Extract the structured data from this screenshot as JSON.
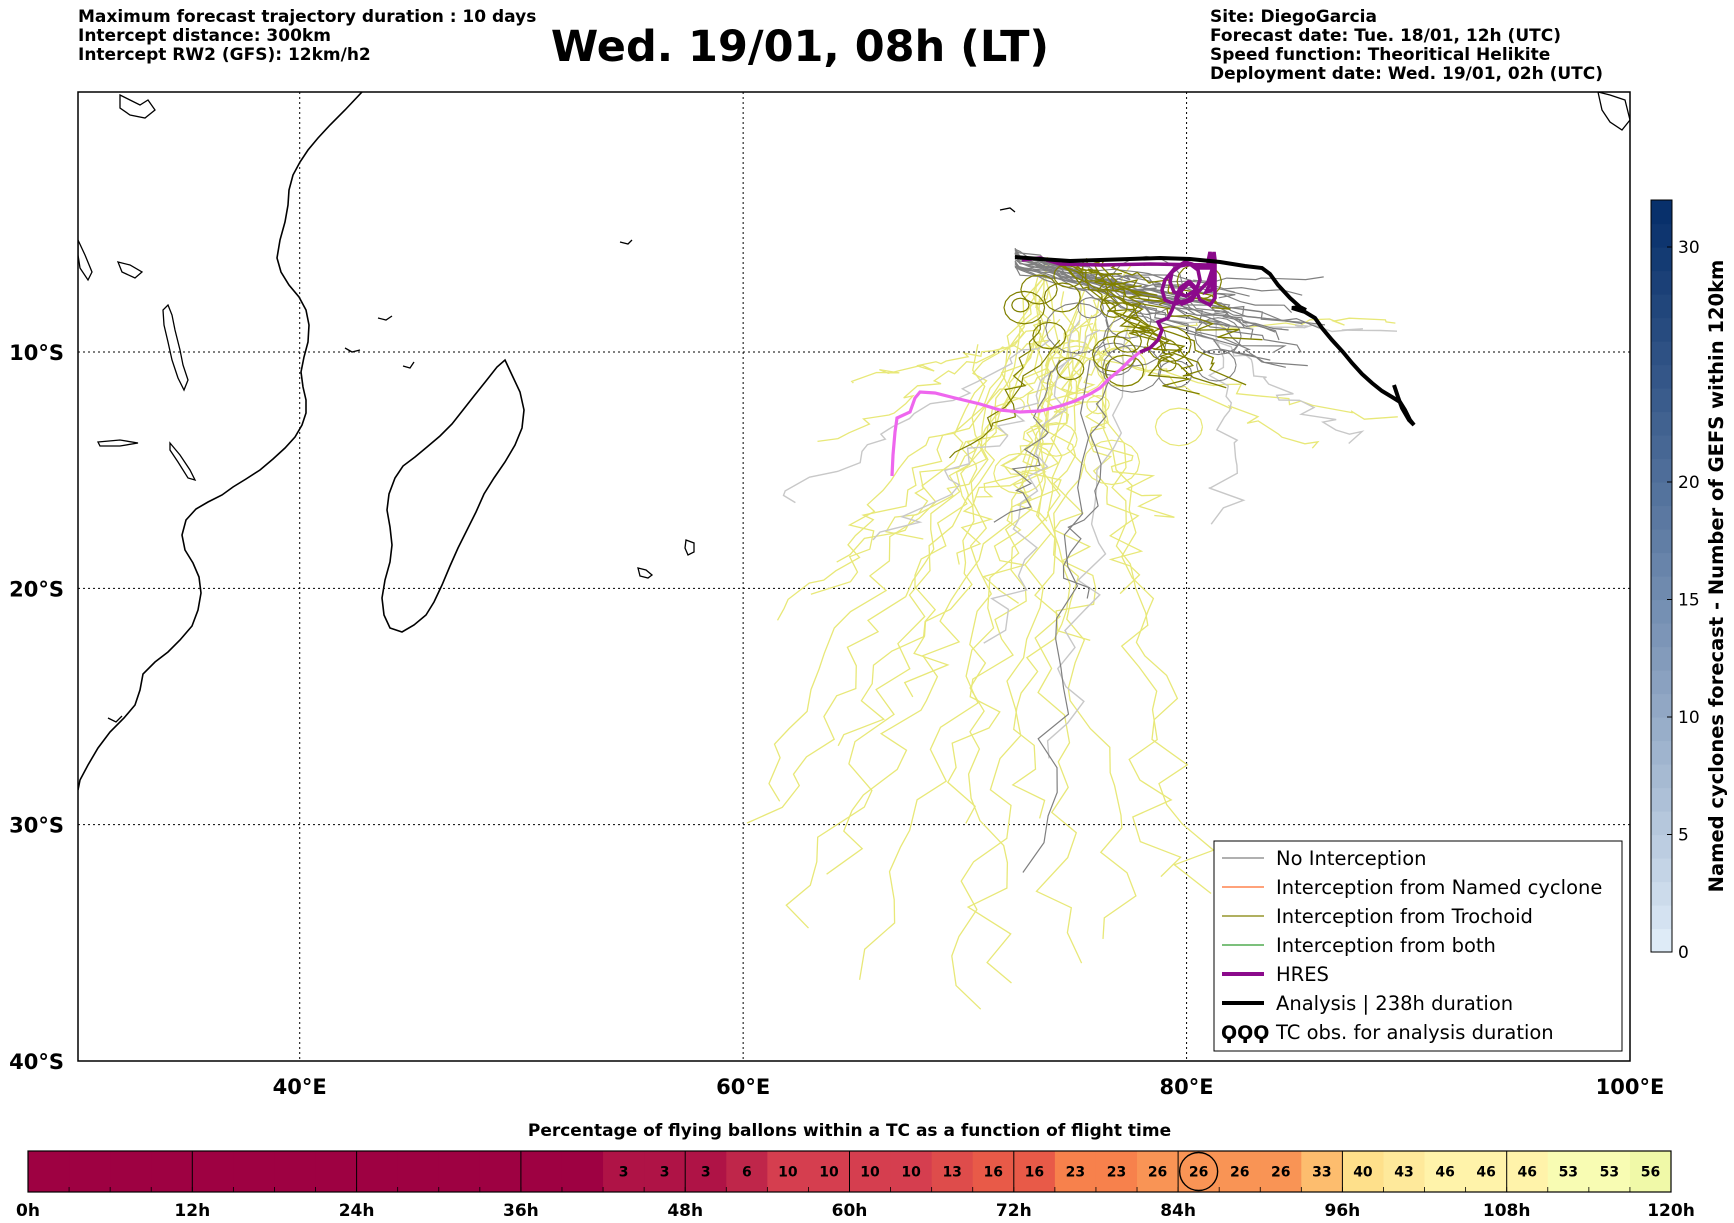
{
  "header_left": {
    "line1": "Maximum forecast trajectory duration : 10 days",
    "line2": "Intercept distance: 300km",
    "line3": "Intercept RW2 (GFS):  12km/h2"
  },
  "title": "Wed. 19/01, 08h (LT)",
  "header_right": {
    "site": "Site: DiegoGarcia",
    "forecast_date": "Forecast date: Tue. 18/01, 12h (UTC)",
    "speed_function": "Speed function: Theoritical Helikite",
    "deployment_date": "Deployment date: Wed. 19/01, 02h (UTC)"
  },
  "map": {
    "lon_labels": [
      "40°E",
      "60°E",
      "80°E",
      "100°E"
    ],
    "lat_labels": [
      "10°S",
      "20°S",
      "30°S",
      "40°S"
    ],
    "lon_ticks": [
      40,
      60,
      80,
      100
    ],
    "lat_ticks": [
      -10,
      -20,
      -30,
      -40
    ],
    "lon_range": [
      30,
      100
    ],
    "lat_range": [
      -40,
      1
    ],
    "colors": {
      "no_interception": "#808080",
      "named_cyclone": "#ff6a2a",
      "trochoid": "#808000",
      "both": "#2e9a2e",
      "hres": "#8b0a8b",
      "hres_early": "#ee66ee",
      "analysis": "#000000",
      "ensemble_light": "#e8e878",
      "grey_light": "#c8c8c8"
    }
  },
  "legend": {
    "items": [
      {
        "label": "No Interception",
        "color": "#808080",
        "width": 1.2
      },
      {
        "label": "Interception from Named cyclone",
        "color": "#ff6a2a",
        "width": 1.2
      },
      {
        "label": "Interception from Trochoid",
        "color": "#808000",
        "width": 1.2
      },
      {
        "label": "Interception from both",
        "color": "#2e9a2e",
        "width": 1.2
      },
      {
        "label": "HRES",
        "color": "#8b0a8b",
        "width": 4
      },
      {
        "label": "Analysis | 238h duration",
        "color": "#000000",
        "width": 4
      },
      {
        "label": "TC obs. for analysis duration",
        "color": "#000000",
        "width": 0
      }
    ],
    "tc_symbol": "ϘϘϘ"
  },
  "colorbar_right": {
    "label": "Named cyclones forecast - Number of GEFS within 120km",
    "ticks": [
      "0",
      "5",
      "10",
      "15",
      "20",
      "30"
    ],
    "tick_values": [
      0,
      5,
      10,
      15,
      20,
      30
    ],
    "range": [
      0,
      32
    ],
    "color_low": "#deebf7",
    "color_high": "#08306b"
  },
  "chart_data": {
    "type": "heatmap",
    "title": "Percentage of flying ballons within a TC as a function of flight time",
    "x_tick_labels": [
      "0h",
      "12h",
      "24h",
      "36h",
      "48h",
      "60h",
      "72h",
      "84h",
      "96h",
      "108h",
      "120h"
    ],
    "x_range_hours": [
      0,
      120
    ],
    "step_hours": 3,
    "values": [
      0,
      0,
      0,
      0,
      0,
      0,
      0,
      0,
      0,
      0,
      0,
      0,
      0,
      0,
      3,
      3,
      3,
      6,
      10,
      10,
      10,
      10,
      13,
      16,
      16,
      23,
      23,
      26,
      26,
      26,
      26,
      33,
      40,
      43,
      46,
      46,
      46,
      53,
      53,
      56
    ],
    "highlighted_index": 28
  }
}
